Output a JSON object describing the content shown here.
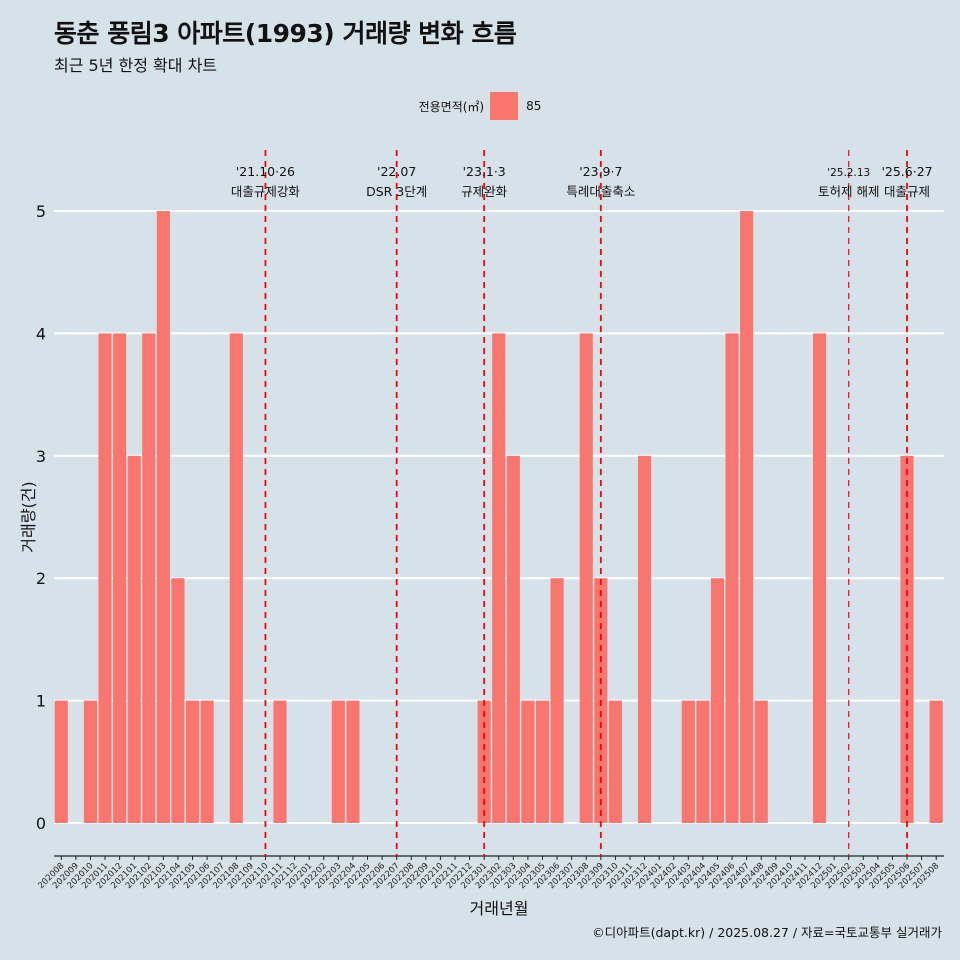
{
  "header": {
    "title": "동춘 풍림3 아파트(1993) 거래량 변화 흐름",
    "subtitle": "최근 5년 한정 확대 차트"
  },
  "legend": {
    "label": "전용면적(㎡)",
    "item": "85",
    "color": "#f8766d"
  },
  "caption": "©디아파트(dapt.kr) / 2025.08.27 / 자료=국토교통부 실거래가",
  "chart_data": {
    "type": "bar",
    "xlabel": "거래년월",
    "ylabel": "거래량(건)",
    "ylim": [
      0,
      5
    ],
    "yticks": [
      0,
      1,
      2,
      3,
      4,
      5
    ],
    "grid": true,
    "bar_color": "#f8766d",
    "categories": [
      "202008",
      "202009",
      "202010",
      "202011",
      "202012",
      "202101",
      "202102",
      "202103",
      "202104",
      "202105",
      "202106",
      "202107",
      "202108",
      "202109",
      "202110",
      "202111",
      "202112",
      "202201",
      "202202",
      "202203",
      "202204",
      "202205",
      "202206",
      "202207",
      "202208",
      "202209",
      "202210",
      "202211",
      "202212",
      "202301",
      "202302",
      "202303",
      "202304",
      "202305",
      "202306",
      "202307",
      "202308",
      "202309",
      "202310",
      "202311",
      "202312",
      "202401",
      "202402",
      "202403",
      "202404",
      "202405",
      "202406",
      "202407",
      "202408",
      "202409",
      "202410",
      "202411",
      "202412",
      "202501",
      "202502",
      "202503",
      "202504",
      "202505",
      "202506",
      "202507",
      "202508"
    ],
    "series": [
      {
        "name": "85",
        "values": [
          1,
          0,
          1,
          4,
          4,
          3,
          4,
          5,
          2,
          1,
          1,
          0,
          4,
          0,
          0,
          1,
          0,
          0,
          0,
          1,
          1,
          0,
          0,
          0,
          0,
          0,
          0,
          0,
          0,
          1,
          4,
          3,
          1,
          1,
          2,
          0,
          4,
          2,
          1,
          0,
          3,
          0,
          0,
          1,
          1,
          2,
          4,
          5,
          1,
          0,
          0,
          0,
          4,
          0,
          0,
          0,
          0,
          0,
          3,
          0,
          1
        ]
      }
    ],
    "annotations": [
      {
        "x": "202110",
        "line1": "'21.10·26",
        "line2": "대출규제강화"
      },
      {
        "x": "202207",
        "line1": "'22.07",
        "line2": "DSR 3단계"
      },
      {
        "x": "202301",
        "line1": "'23.1·3",
        "line2": "규제완화"
      },
      {
        "x": "202309",
        "line1": "'23.9·7",
        "line2": "특례대출축소"
      },
      {
        "x": "202502",
        "line1": "'25.2.13",
        "line2": "토허제 해제"
      },
      {
        "x": "202506",
        "line1": "'25.6·27",
        "line2": "대출규제"
      }
    ]
  }
}
